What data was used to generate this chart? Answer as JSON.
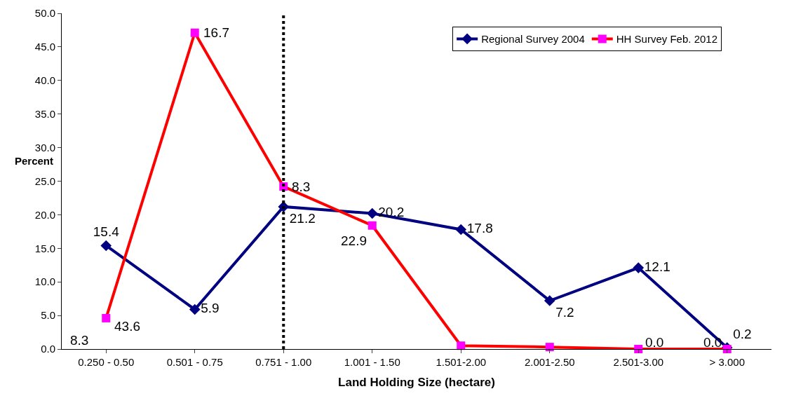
{
  "chart_data": {
    "type": "line",
    "xlabel": "Land Holding Size (hectare)",
    "ylabel": "Percent",
    "categories": [
      "0.250 - 0.50",
      "0.501 - 0.75",
      "0.751 - 1.00",
      "1.001 - 1.50",
      "1.501-2.00",
      "2.001-2.50",
      "2.501-3.00",
      "> 3.000"
    ],
    "series": [
      {
        "name": "Regional Survey 2004",
        "color": "#000080",
        "marker": "diamond",
        "values": [
          15.4,
          5.9,
          21.2,
          20.2,
          17.8,
          7.2,
          12.1,
          0.2
        ],
        "value_labels": [
          "15.4",
          "5.9",
          "21.2",
          "20.2",
          "17.8",
          "7.2",
          "12.1",
          "0.2"
        ]
      },
      {
        "name": "HH Survey Feb. 2012",
        "color": "#ff0000",
        "marker": "square",
        "colors": [
          "#ff00ff",
          "#ff00ff",
          "#ff00ff",
          "#ff00ff",
          "#ff00ff",
          "#ff00ff",
          "#ff00ff",
          "#ff00ff"
        ],
        "values": [
          4.6,
          47.1,
          24.2,
          18.4,
          0.5,
          0.3,
          0.0,
          0.0
        ]
      }
    ],
    "annotations": [
      "8.3",
      {
        "text": "43.6",
        "x": "0.250 - 0.50",
        "y": 4.6
      },
      {
        "text": "16.7",
        "x": "0.501 - 0.75",
        "y": 47.1
      },
      {
        "text": "8.3",
        "x": "0.751 - 1.00",
        "y": 24.2
      },
      {
        "text": "22.9",
        "x": "1.001 - 1.50",
        "y": 18.4
      },
      {
        "text": "0.0",
        "x": "2.501-3.00",
        "y": 0.0
      },
      {
        "text": "0.0",
        "x": "> 3.000",
        "y": 0.0
      }
    ],
    "ref_lines": [
      {
        "axis": "x",
        "value": "0.751 - 1.00",
        "color": "#000000",
        "line_style": "dotted"
      }
    ],
    "ylim": [
      0,
      50
    ],
    "yticks": [
      {
        "value": 0,
        "label": "0.0"
      },
      {
        "value": 5,
        "label": "5.0"
      },
      {
        "value": 10,
        "label": "10.0"
      },
      {
        "value": 15,
        "label": "15.0"
      },
      {
        "value": 20,
        "label": "20.0"
      },
      {
        "value": 25,
        "label": "25.0"
      },
      {
        "value": 30,
        "label": "30.0"
      },
      {
        "value": 35,
        "label": "35.0"
      },
      {
        "value": 40,
        "label": "40.0"
      },
      {
        "value": 45,
        "label": "45.0"
      },
      {
        "value": 50,
        "label": "50.0"
      }
    ],
    "legend": "top right"
  }
}
